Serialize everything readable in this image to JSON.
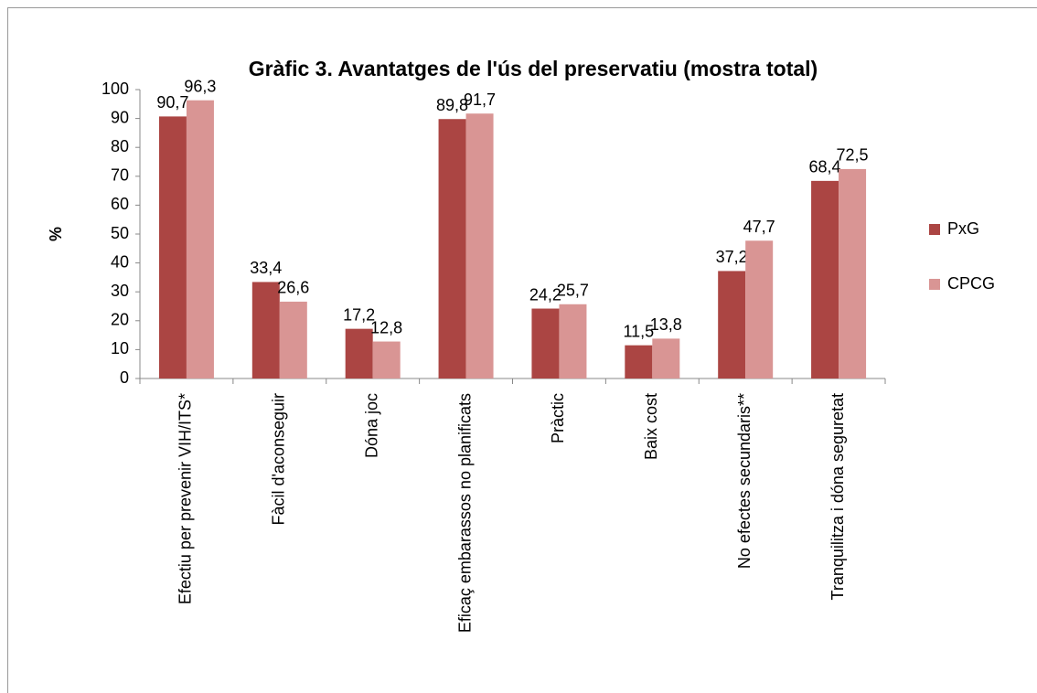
{
  "chart_data": {
    "type": "bar",
    "title": "Gràfic 3.  Avantatges de l'ús del preservatiu (mostra total)",
    "y_label": "%",
    "categories": [
      "Efectiu per prevenir VIH/ITS*",
      "Fàcil d'aconseguir",
      "Dóna joc",
      "Eficaç embarassos no planificats",
      "Pràctic",
      "Baix cost",
      "No efectes secundaris**",
      "Tranquilitza i dóna seguretat"
    ],
    "series": [
      {
        "name": "PxG",
        "color": "#ab4543",
        "values": [
          90.7,
          33.4,
          17.2,
          89.8,
          24.2,
          11.5,
          37.2,
          68.4
        ],
        "value_labels": [
          "90,7",
          "33,4",
          "17,2",
          "89,8",
          "24,2",
          "11,5",
          "37,2",
          "68,4"
        ]
      },
      {
        "name": "CPCG",
        "color": "#d99594",
        "values": [
          96.3,
          26.6,
          12.8,
          91.7,
          25.7,
          13.8,
          47.7,
          72.5
        ],
        "value_labels": [
          "96,3",
          "26,6",
          "12,8",
          "91,7",
          "25,7",
          "13,8",
          "47,7",
          "72,5"
        ]
      }
    ],
    "ylim": [
      0,
      100
    ],
    "yticks": [
      0,
      10,
      20,
      30,
      40,
      50,
      60,
      70,
      80,
      90,
      100
    ],
    "legend": "right"
  }
}
